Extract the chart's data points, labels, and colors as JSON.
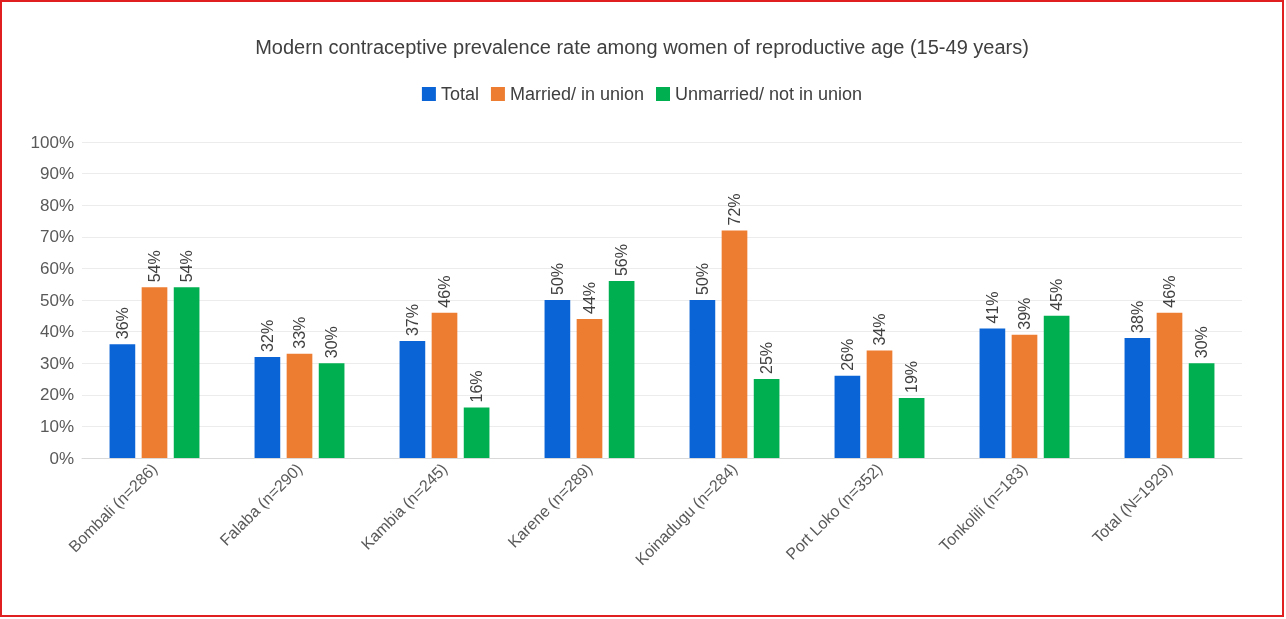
{
  "chart_data": {
    "type": "bar",
    "title": "Modern contraceptive prevalence rate among women of reproductive age (15-49 years)",
    "categories": [
      "Bombali (n=286)",
      "Falaba (n=290)",
      "Kambia (n=245)",
      "Karene (n=289)",
      "Koinadugu (n=284)",
      "Port Loko (n=352)",
      "Tonkolili (n=183)",
      "Total (N=1929)"
    ],
    "series": [
      {
        "name": "Total",
        "color": "#0b64d6",
        "values": [
          36,
          32,
          37,
          50,
          50,
          26,
          41,
          38
        ],
        "value_labels": [
          "36%",
          "32%",
          "37%",
          "50%",
          "50%",
          "26%",
          "41%",
          "38%"
        ]
      },
      {
        "name": "Married/ in union",
        "color": "#ed7d31",
        "values": [
          54,
          33,
          46,
          44,
          72,
          34,
          39,
          46
        ],
        "value_labels": [
          "54%",
          "33%",
          "46%",
          "44%",
          "72%",
          "34%",
          "39%",
          "46%"
        ]
      },
      {
        "name": "Unmarried/ not in union",
        "color": "#00b050",
        "values": [
          54,
          30,
          16,
          56,
          25,
          19,
          45,
          30
        ],
        "value_labels": [
          "54%",
          "30%",
          "16%",
          "56%",
          "25%",
          "19%",
          "45%",
          "30%"
        ]
      }
    ],
    "ylim": [
      0,
      100
    ],
    "yticks": [
      {
        "value": 0,
        "label": "0%"
      },
      {
        "value": 10,
        "label": "10%"
      },
      {
        "value": 20,
        "label": "20%"
      },
      {
        "value": 30,
        "label": "30%"
      },
      {
        "value": 40,
        "label": "40%"
      },
      {
        "value": 50,
        "label": "50%"
      },
      {
        "value": 60,
        "label": "60%"
      },
      {
        "value": 70,
        "label": "70%"
      },
      {
        "value": 80,
        "label": "80%"
      },
      {
        "value": 90,
        "label": "90%"
      },
      {
        "value": 100,
        "label": "100%"
      }
    ],
    "grid": "y",
    "legend": "top"
  }
}
